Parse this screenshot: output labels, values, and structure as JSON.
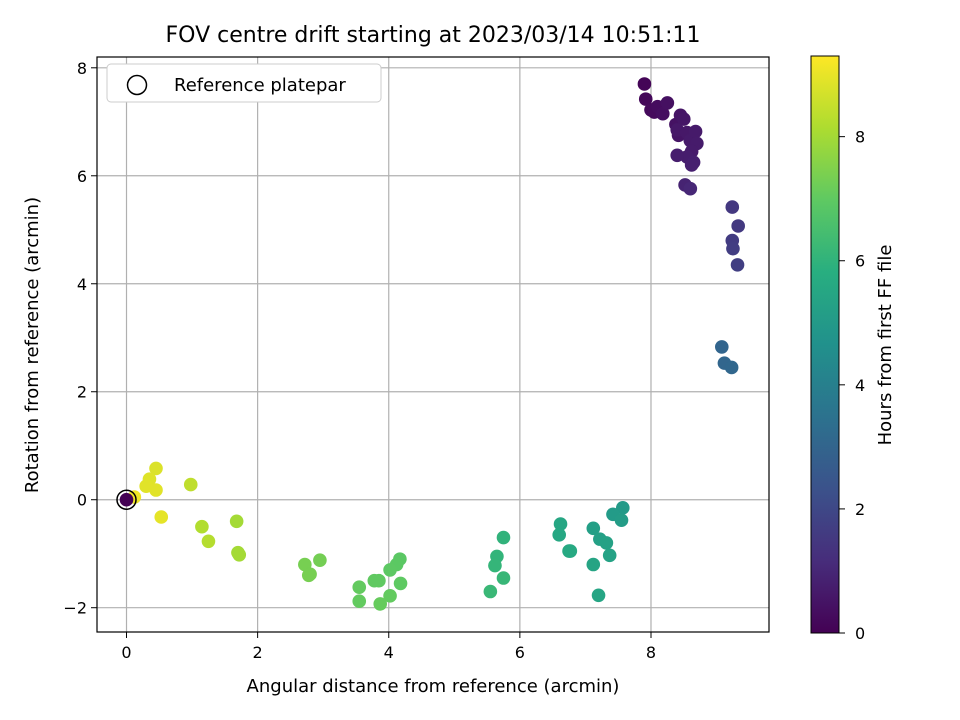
{
  "chart_data": {
    "type": "scatter",
    "title": "FOV centre drift starting at 2023/03/14 10:51:11",
    "xlabel": "Angular distance from reference (arcmin)",
    "ylabel": "Rotation from reference (arcmin)",
    "xlim": [
      -0.45,
      9.8
    ],
    "ylim": [
      -2.45,
      8.2
    ],
    "xticks": [
      0,
      2,
      4,
      6,
      8
    ],
    "yticks": [
      -2,
      0,
      2,
      4,
      6,
      8
    ],
    "xtick_labels": [
      "0",
      "2",
      "4",
      "6",
      "8"
    ],
    "ytick_labels": [
      "−2",
      "0",
      "2",
      "4",
      "6",
      "8"
    ],
    "grid": true,
    "legend": {
      "placement": "top-left",
      "entries": [
        "Reference platepar"
      ]
    },
    "reference_point": {
      "x": 0,
      "y": 0,
      "label": "Reference platepar"
    },
    "colorbar": {
      "label": "Hours from first FF file",
      "colormap": "viridis",
      "range": [
        0,
        9.3
      ],
      "ticks": [
        0,
        2,
        4,
        6,
        8
      ],
      "tick_labels": [
        "0",
        "2",
        "4",
        "6",
        "8"
      ]
    },
    "points": [
      {
        "x": 7.9,
        "y": 7.7,
        "t": 0.1
      },
      {
        "x": 7.92,
        "y": 7.42,
        "t": 0.15
      },
      {
        "x": 8.0,
        "y": 7.22,
        "t": 0.2
      },
      {
        "x": 8.05,
        "y": 7.18,
        "t": 0.25
      },
      {
        "x": 8.1,
        "y": 7.28,
        "t": 0.3
      },
      {
        "x": 8.18,
        "y": 7.15,
        "t": 0.35
      },
      {
        "x": 8.25,
        "y": 7.35,
        "t": 0.4
      },
      {
        "x": 8.38,
        "y": 6.95,
        "t": 0.45
      },
      {
        "x": 8.42,
        "y": 6.75,
        "t": 0.5
      },
      {
        "x": 8.45,
        "y": 7.12,
        "t": 0.5
      },
      {
        "x": 8.5,
        "y": 7.05,
        "t": 0.55
      },
      {
        "x": 8.4,
        "y": 6.85,
        "t": 0.6
      },
      {
        "x": 8.55,
        "y": 6.8,
        "t": 0.6
      },
      {
        "x": 8.6,
        "y": 6.65,
        "t": 0.65
      },
      {
        "x": 8.68,
        "y": 6.82,
        "t": 0.65
      },
      {
        "x": 8.7,
        "y": 6.6,
        "t": 0.7
      },
      {
        "x": 8.62,
        "y": 6.45,
        "t": 0.7
      },
      {
        "x": 8.55,
        "y": 6.35,
        "t": 0.75
      },
      {
        "x": 8.4,
        "y": 6.38,
        "t": 0.75
      },
      {
        "x": 8.65,
        "y": 6.25,
        "t": 0.8
      },
      {
        "x": 8.62,
        "y": 6.2,
        "t": 0.8
      },
      {
        "x": 8.52,
        "y": 5.83,
        "t": 0.9
      },
      {
        "x": 8.6,
        "y": 5.76,
        "t": 1.0
      },
      {
        "x": 9.24,
        "y": 5.42,
        "t": 1.5
      },
      {
        "x": 9.33,
        "y": 5.07,
        "t": 1.55
      },
      {
        "x": 9.24,
        "y": 4.8,
        "t": 1.6
      },
      {
        "x": 9.25,
        "y": 4.65,
        "t": 1.65
      },
      {
        "x": 9.32,
        "y": 4.35,
        "t": 1.7
      },
      {
        "x": 9.08,
        "y": 2.83,
        "t": 3.0
      },
      {
        "x": 9.12,
        "y": 2.53,
        "t": 3.05
      },
      {
        "x": 9.23,
        "y": 2.45,
        "t": 3.1
      },
      {
        "x": 7.57,
        "y": -0.15,
        "t": 5.0
      },
      {
        "x": 7.42,
        "y": -0.27,
        "t": 5.05
      },
      {
        "x": 7.55,
        "y": -0.38,
        "t": 5.1
      },
      {
        "x": 7.12,
        "y": -0.53,
        "t": 5.2
      },
      {
        "x": 7.22,
        "y": -0.73,
        "t": 5.25
      },
      {
        "x": 7.32,
        "y": -0.8,
        "t": 5.3
      },
      {
        "x": 7.37,
        "y": -1.03,
        "t": 5.35
      },
      {
        "x": 7.12,
        "y": -1.2,
        "t": 5.4
      },
      {
        "x": 7.2,
        "y": -1.77,
        "t": 5.45
      },
      {
        "x": 6.62,
        "y": -0.45,
        "t": 5.5
      },
      {
        "x": 6.6,
        "y": -0.65,
        "t": 5.55
      },
      {
        "x": 6.75,
        "y": -0.95,
        "t": 5.6
      },
      {
        "x": 6.77,
        "y": -0.95,
        "t": 5.6
      },
      {
        "x": 5.75,
        "y": -0.7,
        "t": 6.0
      },
      {
        "x": 5.65,
        "y": -1.05,
        "t": 6.05
      },
      {
        "x": 5.62,
        "y": -1.22,
        "t": 6.1
      },
      {
        "x": 5.75,
        "y": -1.45,
        "t": 6.15
      },
      {
        "x": 5.55,
        "y": -1.7,
        "t": 6.2
      },
      {
        "x": 4.17,
        "y": -1.1,
        "t": 6.9
      },
      {
        "x": 4.12,
        "y": -1.2,
        "t": 6.92
      },
      {
        "x": 4.02,
        "y": -1.3,
        "t": 6.95
      },
      {
        "x": 4.18,
        "y": -1.55,
        "t": 6.97
      },
      {
        "x": 3.78,
        "y": -1.5,
        "t": 7.0
      },
      {
        "x": 3.85,
        "y": -1.5,
        "t": 7.0
      },
      {
        "x": 3.55,
        "y": -1.62,
        "t": 7.05
      },
      {
        "x": 3.55,
        "y": -1.88,
        "t": 7.05
      },
      {
        "x": 4.02,
        "y": -1.78,
        "t": 7.05
      },
      {
        "x": 3.87,
        "y": -1.93,
        "t": 7.1
      },
      {
        "x": 2.95,
        "y": -1.12,
        "t": 7.3
      },
      {
        "x": 2.72,
        "y": -1.2,
        "t": 7.35
      },
      {
        "x": 2.8,
        "y": -1.38,
        "t": 7.35
      },
      {
        "x": 2.78,
        "y": -1.4,
        "t": 7.35
      },
      {
        "x": 1.68,
        "y": -0.4,
        "t": 8.0
      },
      {
        "x": 1.7,
        "y": -0.98,
        "t": 8.0
      },
      {
        "x": 1.72,
        "y": -1.02,
        "t": 8.0
      },
      {
        "x": 1.15,
        "y": -0.5,
        "t": 8.2
      },
      {
        "x": 1.25,
        "y": -0.77,
        "t": 8.25
      },
      {
        "x": 0.98,
        "y": 0.28,
        "t": 8.4
      },
      {
        "x": 0.45,
        "y": 0.58,
        "t": 8.8
      },
      {
        "x": 0.35,
        "y": 0.38,
        "t": 8.85
      },
      {
        "x": 0.3,
        "y": 0.25,
        "t": 8.9
      },
      {
        "x": 0.45,
        "y": 0.18,
        "t": 8.9
      },
      {
        "x": 0.53,
        "y": -0.32,
        "t": 8.95
      },
      {
        "x": 0.12,
        "y": 0.05,
        "t": 9.1
      },
      {
        "x": 0.0,
        "y": 0.0,
        "t": 0.0
      }
    ]
  }
}
